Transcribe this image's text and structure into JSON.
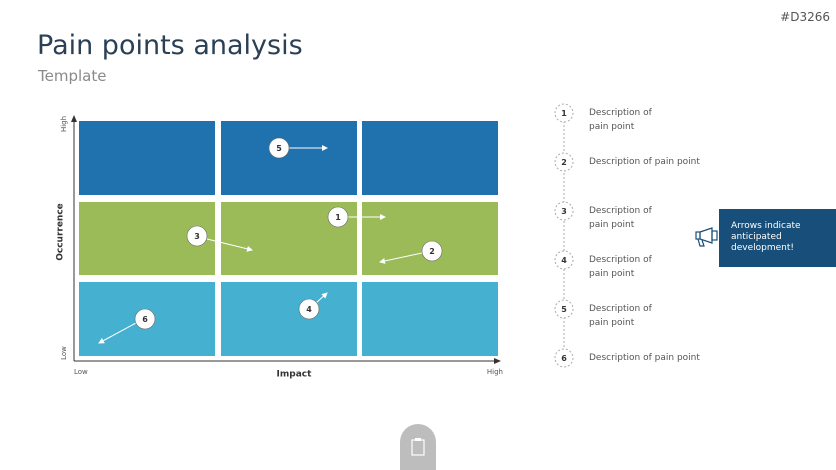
{
  "id": "#D3266",
  "header": {
    "title": "Pain points analysis",
    "subtitle": "Template"
  },
  "matrix": {
    "y_axis": {
      "label": "Occurrence",
      "low": "Low",
      "high": "High"
    },
    "x_axis": {
      "label": "Impact",
      "low": "Low",
      "high": "High"
    },
    "points": [
      {
        "label": "1"
      },
      {
        "label": "2"
      },
      {
        "label": "3"
      },
      {
        "label": "4"
      },
      {
        "label": "5"
      },
      {
        "label": "6"
      }
    ]
  },
  "list": [
    {
      "number": "1",
      "text": "Description of pain point"
    },
    {
      "number": "2",
      "text": "Description of pain point"
    },
    {
      "number": "3",
      "text": "Description of pain point"
    },
    {
      "number": "4",
      "text": "Description of pain point"
    },
    {
      "number": "5",
      "text": "Description of pain point"
    },
    {
      "number": "6",
      "text": "Description of pain point"
    }
  ],
  "callout": "Arrows indicate anticipated development!"
}
